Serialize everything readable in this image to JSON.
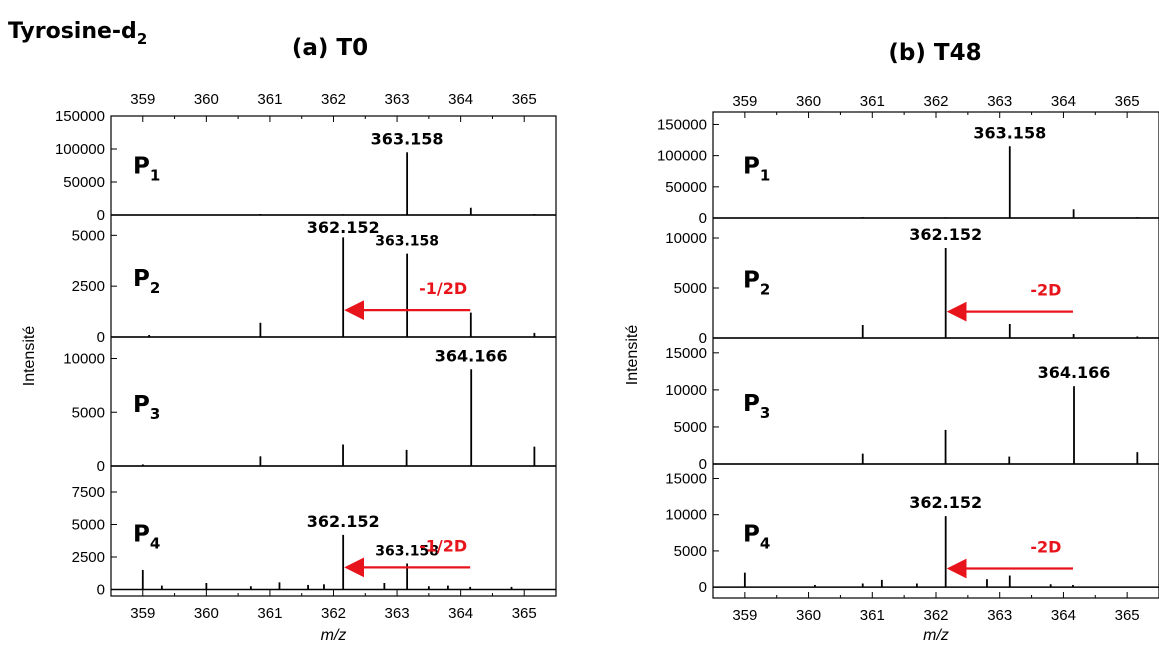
{
  "figure_title": "Tyrosine-d",
  "figure_title_sub": "2",
  "colors": {
    "arrow": "#e8141b",
    "line": "#000000"
  },
  "chart_data": [
    {
      "type": "line",
      "title": "(a) T0",
      "xlabel": "m/z",
      "ylabel": "Intensité",
      "xlim": [
        358.5,
        365.5
      ],
      "xticks": [
        359,
        360,
        361,
        362,
        363,
        364,
        365
      ],
      "grid": false,
      "panels": [
        {
          "label": "P",
          "label_sub": "1",
          "ylim": [
            0,
            150000
          ],
          "yticks": [
            0,
            50000,
            100000,
            150000
          ],
          "peaks": [
            [
              360.85,
              1500
            ],
            [
              362.15,
              1200
            ],
            [
              363.158,
              95000
            ],
            [
              364.16,
              11000
            ],
            [
              365.16,
              1500
            ]
          ],
          "peak_labels": [
            {
              "text": "363.158",
              "x": 363.158
            }
          ],
          "arrows": []
        },
        {
          "label": "P",
          "label_sub": "2",
          "ylim": [
            0,
            6000
          ],
          "yticks": [
            0,
            2500,
            5000
          ],
          "peaks": [
            [
              359.1,
              100
            ],
            [
              360.85,
              700
            ],
            [
              362.152,
              4900
            ],
            [
              363.158,
              4100
            ],
            [
              364.16,
              1200
            ],
            [
              365.16,
              200
            ]
          ],
          "peak_labels": [
            {
              "text": "362.152",
              "x": 362.152
            },
            {
              "text": "363.158",
              "x": 363.158
            }
          ],
          "arrows": [
            {
              "text": "-1/2D",
              "from": 364.15,
              "to": 362.2
            }
          ]
        },
        {
          "label": "P",
          "label_sub": "3",
          "ylim": [
            0,
            12000
          ],
          "yticks": [
            0,
            5000,
            10000
          ],
          "peaks": [
            [
              359.0,
              150
            ],
            [
              360.85,
              900
            ],
            [
              362.15,
              2000
            ],
            [
              363.15,
              1500
            ],
            [
              364.166,
              9000
            ],
            [
              365.16,
              1800
            ]
          ],
          "peak_labels": [
            {
              "text": "364.166",
              "x": 364.166
            }
          ],
          "arrows": []
        },
        {
          "label": "P",
          "label_sub": "4",
          "ylim": [
            -500,
            9500
          ],
          "yticks": [
            0,
            2500,
            5000,
            7500
          ],
          "peaks": [
            [
              359.0,
              1500
            ],
            [
              359.3,
              300
            ],
            [
              360.0,
              500
            ],
            [
              360.7,
              250
            ],
            [
              361.15,
              550
            ],
            [
              361.6,
              350
            ],
            [
              361.85,
              400
            ],
            [
              362.152,
              4200
            ],
            [
              362.8,
              500
            ],
            [
              363.158,
              2000
            ],
            [
              363.5,
              250
            ],
            [
              363.8,
              300
            ],
            [
              364.15,
              200
            ],
            [
              364.8,
              200
            ]
          ],
          "peak_labels": [
            {
              "text": "362.152",
              "x": 362.152
            },
            {
              "text": "363.158",
              "x": 363.158
            }
          ],
          "arrows": [
            {
              "text": "-1/2D",
              "from": 364.15,
              "to": 362.2
            }
          ]
        }
      ]
    },
    {
      "type": "line",
      "title": "(b) T48",
      "xlabel": "m/z",
      "ylabel": "Intensité",
      "xlim": [
        358.5,
        365.5
      ],
      "xticks": [
        359,
        360,
        361,
        362,
        363,
        364,
        365
      ],
      "grid": false,
      "panels": [
        {
          "label": "P",
          "label_sub": "1",
          "ylim": [
            0,
            170000
          ],
          "yticks": [
            0,
            50000,
            100000,
            150000
          ],
          "peaks": [
            [
              360.85,
              1500
            ],
            [
              362.15,
              1200
            ],
            [
              363.158,
              115000
            ],
            [
              364.16,
              14000
            ],
            [
              365.16,
              1500
            ]
          ],
          "peak_labels": [
            {
              "text": "363.158",
              "x": 363.158
            }
          ],
          "arrows": []
        },
        {
          "label": "P",
          "label_sub": "2",
          "ylim": [
            0,
            12000
          ],
          "yticks": [
            0,
            5000,
            10000
          ],
          "peaks": [
            [
              360.85,
              1300
            ],
            [
              362.152,
              9000
            ],
            [
              363.158,
              1400
            ],
            [
              364.16,
              400
            ],
            [
              365.16,
              150
            ]
          ],
          "peak_labels": [
            {
              "text": "362.152",
              "x": 362.152
            }
          ],
          "arrows": [
            {
              "text": "-2D",
              "from": 364.15,
              "to": 362.2
            }
          ]
        },
        {
          "label": "P",
          "label_sub": "3",
          "ylim": [
            0,
            17000
          ],
          "yticks": [
            0,
            5000,
            10000,
            15000
          ],
          "peaks": [
            [
              360.85,
              1400
            ],
            [
              362.15,
              4600
            ],
            [
              363.15,
              1000
            ],
            [
              364.166,
              10500
            ],
            [
              365.16,
              1600
            ]
          ],
          "peak_labels": [
            {
              "text": "364.166",
              "x": 364.166
            }
          ],
          "arrows": []
        },
        {
          "label": "P",
          "label_sub": "4",
          "ylim": [
            -1500,
            17000
          ],
          "yticks": [
            0,
            5000,
            10000,
            15000
          ],
          "peaks": [
            [
              359.0,
              2000
            ],
            [
              360.1,
              300
            ],
            [
              360.85,
              500
            ],
            [
              361.15,
              1000
            ],
            [
              361.7,
              500
            ],
            [
              362.152,
              9800
            ],
            [
              362.8,
              1100
            ],
            [
              363.158,
              1600
            ],
            [
              363.8,
              400
            ],
            [
              364.15,
              300
            ]
          ],
          "peak_labels": [
            {
              "text": "362.152",
              "x": 362.152
            }
          ],
          "arrows": [
            {
              "text": "-2D",
              "from": 364.15,
              "to": 362.2
            }
          ]
        }
      ]
    }
  ]
}
